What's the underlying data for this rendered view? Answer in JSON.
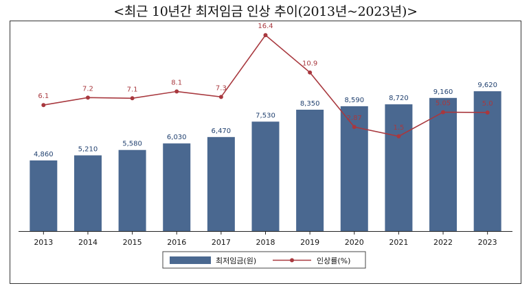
{
  "title": "<최근 10년간 최저임금 인상 추이(2013년~2023년)>",
  "colors": {
    "bar": "#4a6890",
    "bar_label": "#1f3f6e",
    "line": "#a8383e",
    "axis": "#222222"
  },
  "chart_data": {
    "type": "bar",
    "title": "<최근 10년간 최저임금 인상 추이(2013년~2023년)>",
    "categories": [
      "2013",
      "2014",
      "2015",
      "2016",
      "2017",
      "2018",
      "2019",
      "2020",
      "2021",
      "2022",
      "2023"
    ],
    "series": [
      {
        "name": "최저임금(원)",
        "type": "bar",
        "values": [
          4860,
          5210,
          5580,
          6030,
          6470,
          7530,
          8350,
          8590,
          8720,
          9160,
          9620
        ],
        "labels": [
          "4,860",
          "5,210",
          "5,580",
          "6,030",
          "6,470",
          "7,530",
          "8,350",
          "8,590",
          "8,720",
          "9,160",
          "9,620"
        ]
      },
      {
        "name": "인상률(%)",
        "type": "line",
        "values": [
          6.1,
          7.2,
          7.1,
          8.1,
          7.3,
          16.4,
          10.9,
          2.87,
          1.5,
          5.05,
          5.0
        ],
        "labels": [
          "6.1",
          "7.2",
          "7.1",
          "8.1",
          "7.3",
          "16.4",
          "10.9",
          "2.87",
          "1.5",
          "5.05",
          "5.0"
        ]
      }
    ],
    "xlabel": "",
    "ylabel": "",
    "legend": "bottom-center",
    "grid": false
  },
  "legend": {
    "bar_label": "최저임금(원)",
    "line_label": "인상률(%)"
  }
}
